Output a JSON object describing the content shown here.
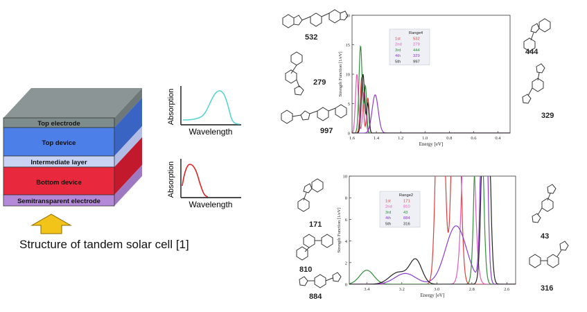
{
  "caption": "Structure of tandem solar cell [1]",
  "stack": {
    "layers": [
      {
        "label": "Top electrode",
        "color": "#7f8c8d"
      },
      {
        "label": "Top device",
        "color": "#4d7fe8"
      },
      {
        "label": "Intermediate layer",
        "color": "#c9d3f3"
      },
      {
        "label": "Bottom device",
        "color": "#e8283c"
      },
      {
        "label": "Semitransparent electrode",
        "color": "#b48ad8"
      }
    ],
    "top_face_color": "#8c9596",
    "arrow_color": "#f2c318"
  },
  "insets": {
    "top": {
      "ylabel": "Absorption",
      "xlabel": "Wavelength",
      "curve_color": "#57d6d2"
    },
    "bottom": {
      "ylabel": "Absorption",
      "xlabel": "Wavelength",
      "curve_color": "#e02222"
    }
  },
  "molecules": {
    "upper_left": [
      "532",
      "279",
      "997"
    ],
    "upper_right": [
      "444",
      "329"
    ],
    "lower_left": [
      "171",
      "810",
      "884"
    ],
    "lower_right": [
      "43",
      "316"
    ]
  },
  "chart_data": [
    {
      "type": "line",
      "xlabel": "Energy [eV]",
      "ylabel": "Strength Function [1/eV]",
      "xlim": [
        1.6,
        0.3
      ],
      "ylim": [
        0,
        20
      ],
      "xticks": [
        "1.6",
        "1.4",
        "1.2",
        "1.0",
        "0.8",
        "0.6",
        "0.4"
      ],
      "yticks": [
        "0",
        "5",
        "10",
        "15",
        "20"
      ],
      "legend": {
        "title": "Range4",
        "rows": [
          {
            "rank": "1st",
            "id": "532",
            "color": "#e23b3b"
          },
          {
            "rank": "2nd",
            "id": "279",
            "color": "#e55ab8"
          },
          {
            "rank": "3rd",
            "id": "444",
            "color": "#2f8f3a"
          },
          {
            "rank": "4th",
            "id": "329",
            "color": "#8a3ad0"
          },
          {
            "rank": "5th",
            "id": "997",
            "color": "#222222"
          }
        ]
      },
      "series": [
        {
          "id": "532",
          "color": "#e23b3b",
          "peaks": [
            {
              "x": 1.52,
              "h": 9.5,
              "w": 0.012
            },
            {
              "x": 1.47,
              "h": 6,
              "w": 0.01
            }
          ]
        },
        {
          "id": "279",
          "color": "#e55ab8",
          "peaks": [
            {
              "x": 1.56,
              "h": 10,
              "w": 0.012
            },
            {
              "x": 1.5,
              "h": 7,
              "w": 0.012
            }
          ]
        },
        {
          "id": "444",
          "color": "#2f8f3a",
          "peaks": [
            {
              "x": 1.53,
              "h": 14.8,
              "w": 0.013
            },
            {
              "x": 1.49,
              "h": 8,
              "w": 0.01
            }
          ]
        },
        {
          "id": "329",
          "color": "#8a3ad0",
          "peaks": [
            {
              "x": 1.41,
              "h": 6.5,
              "w": 0.025
            }
          ]
        },
        {
          "id": "997",
          "color": "#222222",
          "peaks": [
            {
              "x": 1.51,
              "h": 10,
              "w": 0.013
            },
            {
              "x": 1.47,
              "h": 5,
              "w": 0.01
            }
          ]
        }
      ]
    },
    {
      "type": "line",
      "xlabel": "Energy [eV]",
      "ylabel": "Strength Function [1/eV]",
      "xlim": [
        3.5,
        2.55
      ],
      "ylim": [
        0,
        10
      ],
      "xticks": [
        "3.4",
        "3.2",
        "3.0",
        "2.8",
        "2.6"
      ],
      "yticks": [
        "0",
        "2",
        "4",
        "6",
        "8",
        "10"
      ],
      "legend": {
        "title": "Range2",
        "rows": [
          {
            "rank": "1st",
            "id": "171",
            "color": "#e23b3b"
          },
          {
            "rank": "2nd",
            "id": "810",
            "color": "#e55ab8"
          },
          {
            "rank": "3rd",
            "id": "43",
            "color": "#2f8f3a"
          },
          {
            "rank": "4th",
            "id": "884",
            "color": "#8a3ad0"
          },
          {
            "rank": "5th",
            "id": "316",
            "color": "#222222"
          }
        ]
      },
      "series": [
        {
          "id": "171",
          "color": "#e23b3b",
          "peaks": [
            {
              "x": 2.98,
              "h": 30,
              "w": 0.02
            },
            {
              "x": 2.89,
              "h": 30,
              "w": 0.02
            }
          ]
        },
        {
          "id": "810",
          "color": "#e55ab8",
          "peaks": [
            {
              "x": 2.82,
              "h": 30,
              "w": 0.025
            }
          ]
        },
        {
          "id": "43",
          "color": "#2f8f3a",
          "peaks": [
            {
              "x": 3.4,
              "h": 1.3,
              "w": 0.04
            },
            {
              "x": 2.76,
              "h": 30,
              "w": 0.018
            }
          ]
        },
        {
          "id": "884",
          "color": "#8a3ad0",
          "peaks": [
            {
              "x": 3.18,
              "h": 1.0,
              "w": 0.06
            },
            {
              "x": 2.89,
              "h": 5.4,
              "w": 0.06
            },
            {
              "x": 2.73,
              "h": 30,
              "w": 0.015
            }
          ]
        },
        {
          "id": "316",
          "color": "#222222",
          "peaks": [
            {
              "x": 3.22,
              "h": 1.1,
              "w": 0.05
            },
            {
              "x": 3.12,
              "h": 2.2,
              "w": 0.035
            },
            {
              "x": 2.72,
              "h": 30,
              "w": 0.018
            }
          ]
        }
      ]
    }
  ]
}
